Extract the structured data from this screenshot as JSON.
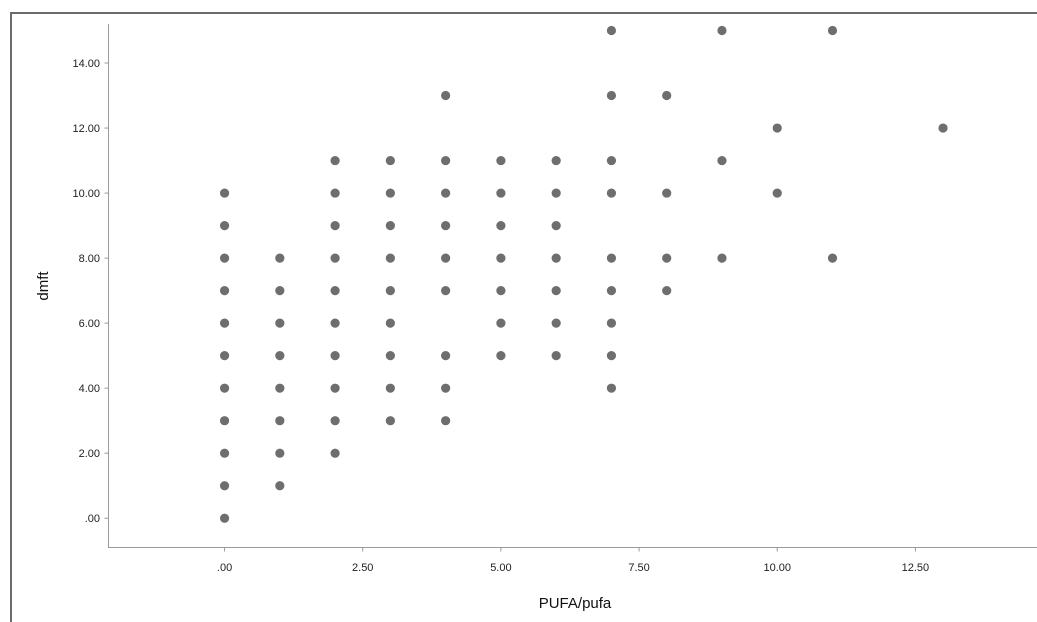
{
  "chart_data": {
    "type": "scatter",
    "title": "",
    "xlabel": "PUFA/pufa",
    "ylabel": "dmft",
    "xlim": [
      -2.1,
      14.7
    ],
    "ylim": [
      -0.9,
      15.2
    ],
    "x_ticks": [
      {
        "value": 0,
        "label": ".00"
      },
      {
        "value": 2.5,
        "label": "2.50"
      },
      {
        "value": 5,
        "label": "5.00"
      },
      {
        "value": 7.5,
        "label": "7.50"
      },
      {
        "value": 10,
        "label": "10.00"
      },
      {
        "value": 12.5,
        "label": "12.50"
      }
    ],
    "y_ticks": [
      {
        "value": 0,
        "label": ".00"
      },
      {
        "value": 2,
        "label": "2.00"
      },
      {
        "value": 4,
        "label": "4.00"
      },
      {
        "value": 6,
        "label": "6.00"
      },
      {
        "value": 8,
        "label": "8.00"
      },
      {
        "value": 10,
        "label": "10.00"
      },
      {
        "value": 12,
        "label": "12.00"
      },
      {
        "value": 14,
        "label": "14.00"
      }
    ],
    "grid": false,
    "legend": "none",
    "marker_color": "#6e6e6e",
    "points": [
      {
        "x": 0,
        "y": 0
      },
      {
        "x": 0,
        "y": 1
      },
      {
        "x": 0,
        "y": 2
      },
      {
        "x": 0,
        "y": 3
      },
      {
        "x": 0,
        "y": 4
      },
      {
        "x": 0,
        "y": 5
      },
      {
        "x": 0,
        "y": 6
      },
      {
        "x": 0,
        "y": 7
      },
      {
        "x": 0,
        "y": 8
      },
      {
        "x": 0,
        "y": 9
      },
      {
        "x": 0,
        "y": 10
      },
      {
        "x": 1,
        "y": 1
      },
      {
        "x": 1,
        "y": 2
      },
      {
        "x": 1,
        "y": 3
      },
      {
        "x": 1,
        "y": 4
      },
      {
        "x": 1,
        "y": 5
      },
      {
        "x": 1,
        "y": 6
      },
      {
        "x": 1,
        "y": 7
      },
      {
        "x": 1,
        "y": 8
      },
      {
        "x": 2,
        "y": 2
      },
      {
        "x": 2,
        "y": 3
      },
      {
        "x": 2,
        "y": 4
      },
      {
        "x": 2,
        "y": 5
      },
      {
        "x": 2,
        "y": 6
      },
      {
        "x": 2,
        "y": 7
      },
      {
        "x": 2,
        "y": 8
      },
      {
        "x": 2,
        "y": 9
      },
      {
        "x": 2,
        "y": 10
      },
      {
        "x": 2,
        "y": 11
      },
      {
        "x": 3,
        "y": 3
      },
      {
        "x": 3,
        "y": 4
      },
      {
        "x": 3,
        "y": 5
      },
      {
        "x": 3,
        "y": 6
      },
      {
        "x": 3,
        "y": 7
      },
      {
        "x": 3,
        "y": 8
      },
      {
        "x": 3,
        "y": 9
      },
      {
        "x": 3,
        "y": 10
      },
      {
        "x": 3,
        "y": 11
      },
      {
        "x": 4,
        "y": 3
      },
      {
        "x": 4,
        "y": 4
      },
      {
        "x": 4,
        "y": 5
      },
      {
        "x": 4,
        "y": 7
      },
      {
        "x": 4,
        "y": 8
      },
      {
        "x": 4,
        "y": 9
      },
      {
        "x": 4,
        "y": 10
      },
      {
        "x": 4,
        "y": 11
      },
      {
        "x": 4,
        "y": 13
      },
      {
        "x": 5,
        "y": 5
      },
      {
        "x": 5,
        "y": 6
      },
      {
        "x": 5,
        "y": 7
      },
      {
        "x": 5,
        "y": 8
      },
      {
        "x": 5,
        "y": 9
      },
      {
        "x": 5,
        "y": 10
      },
      {
        "x": 5,
        "y": 11
      },
      {
        "x": 6,
        "y": 5
      },
      {
        "x": 6,
        "y": 6
      },
      {
        "x": 6,
        "y": 7
      },
      {
        "x": 6,
        "y": 8
      },
      {
        "x": 6,
        "y": 9
      },
      {
        "x": 6,
        "y": 10
      },
      {
        "x": 6,
        "y": 11
      },
      {
        "x": 7,
        "y": 4
      },
      {
        "x": 7,
        "y": 5
      },
      {
        "x": 7,
        "y": 6
      },
      {
        "x": 7,
        "y": 7
      },
      {
        "x": 7,
        "y": 8
      },
      {
        "x": 7,
        "y": 10
      },
      {
        "x": 7,
        "y": 11
      },
      {
        "x": 7,
        "y": 13
      },
      {
        "x": 7,
        "y": 15
      },
      {
        "x": 8,
        "y": 7
      },
      {
        "x": 8,
        "y": 8
      },
      {
        "x": 8,
        "y": 10
      },
      {
        "x": 8,
        "y": 13
      },
      {
        "x": 9,
        "y": 8
      },
      {
        "x": 9,
        "y": 11
      },
      {
        "x": 9,
        "y": 15
      },
      {
        "x": 10,
        "y": 10
      },
      {
        "x": 10,
        "y": 12
      },
      {
        "x": 11,
        "y": 8
      },
      {
        "x": 11,
        "y": 15
      },
      {
        "x": 13,
        "y": 12
      }
    ]
  }
}
